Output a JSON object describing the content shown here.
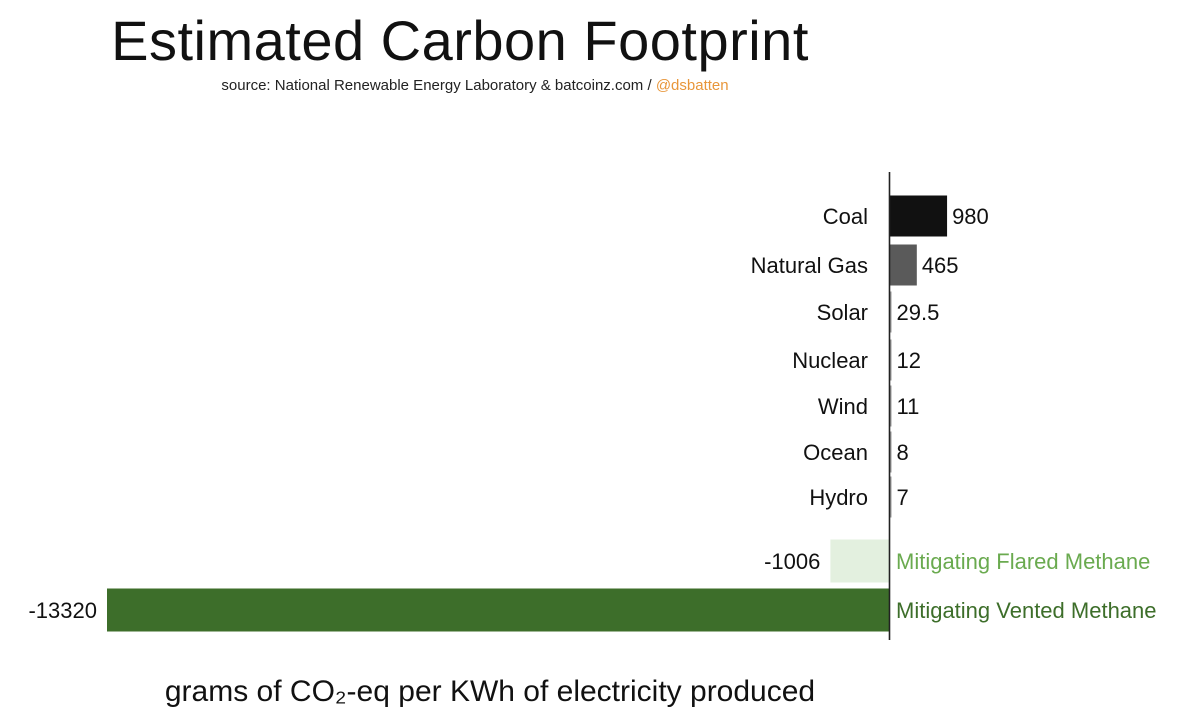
{
  "header": {
    "title": "Estimated Carbon Footprint",
    "source_prefix": "source: National Renewable Energy Laboratory & batcoinz.com / ",
    "source_handle": "@dsbatten"
  },
  "colors": {
    "coal": "#111111",
    "natural_gas": "#5a5a5a",
    "renewables": "#9a9a9a",
    "flared": "#e3f0df",
    "vented": "#3d6e2a",
    "flared_label": "#6aaa4f",
    "vented_label": "#3d6e2a",
    "handle": "#e8963a"
  },
  "chart_data": {
    "type": "bar",
    "orientation": "horizontal",
    "title": "Estimated Carbon Footprint",
    "subtitle": "source: National Renewable Energy Laboratory & batcoinz.com / @dsbatten",
    "xlabel": "grams of CO₂-eq per KWh of electricity produced",
    "ylabel": "",
    "grid": false,
    "xlim": [
      -13320,
      980
    ],
    "categories": [
      "Coal",
      "Natural Gas",
      "Solar",
      "Nuclear",
      "Wind",
      "Ocean",
      "Hydro",
      "Mitigating Flared Methane",
      "Mitigating Vented Methane"
    ],
    "values": [
      980,
      465,
      29.5,
      12,
      11,
      8,
      7,
      -1006,
      -13320
    ],
    "value_labels": [
      "980",
      "465",
      "29.5",
      "12",
      "11",
      "8",
      "7",
      "-1006",
      "-13320"
    ],
    "bar_colors": [
      "#111111",
      "#5a5a5a",
      "#9a9a9a",
      "#9a9a9a",
      "#9a9a9a",
      "#9a9a9a",
      "#9a9a9a",
      "#e3f0df",
      "#3d6e2a"
    ]
  }
}
